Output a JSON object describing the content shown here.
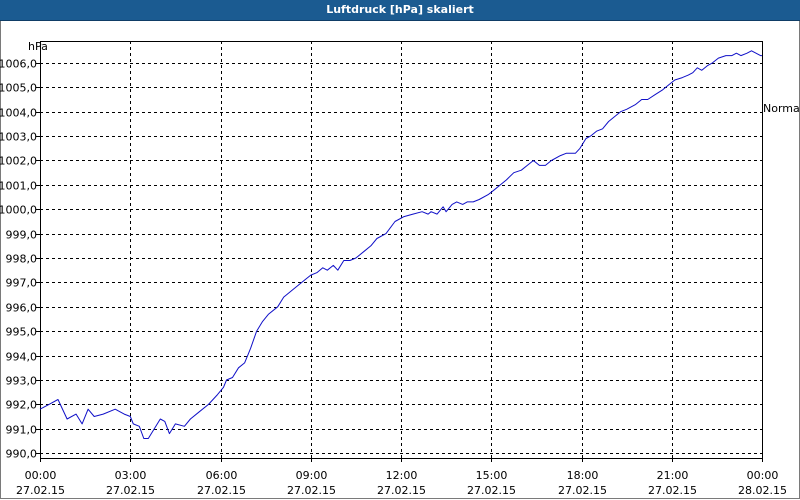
{
  "window": {
    "title": "Luftdruck [hPa] skaliert"
  },
  "chart_data": {
    "type": "line",
    "title": "Luftdruck [hPa] skaliert",
    "y_unit": "hPa",
    "legend": {
      "text": "Normal",
      "placement": "right"
    },
    "line_color": "#1010c8",
    "grid": true,
    "ylim": [
      989.8,
      1006.9
    ],
    "xlim_hours": [
      0,
      24
    ],
    "y_ticks": [
      "990,0",
      "991,0",
      "992,0",
      "993,0",
      "994,0",
      "995,0",
      "996,0",
      "997,0",
      "998,0",
      "999,0",
      "1000,0",
      "1001,0",
      "1002,0",
      "1003,0",
      "1004,0",
      "1005,0",
      "1006,0"
    ],
    "x_ticks": [
      {
        "time": "00:00",
        "date": "27.02.15"
      },
      {
        "time": "03:00",
        "date": "27.02.15"
      },
      {
        "time": "06:00",
        "date": "27.02.15"
      },
      {
        "time": "09:00",
        "date": "27.02.15"
      },
      {
        "time": "12:00",
        "date": "27.02.15"
      },
      {
        "time": "15:00",
        "date": "27.02.15"
      },
      {
        "time": "18:00",
        "date": "27.02.15"
      },
      {
        "time": "21:00",
        "date": "27.02.15"
      },
      {
        "time": "00:00",
        "date": "28.02.15"
      }
    ],
    "series": [
      {
        "values": [
          [
            0.0,
            991.8
          ],
          [
            0.3,
            992.0
          ],
          [
            0.6,
            992.2
          ],
          [
            0.9,
            991.4
          ],
          [
            1.2,
            991.6
          ],
          [
            1.4,
            991.2
          ],
          [
            1.6,
            991.8
          ],
          [
            1.8,
            991.5
          ],
          [
            2.1,
            991.6
          ],
          [
            2.5,
            991.8
          ],
          [
            2.8,
            991.6
          ],
          [
            3.0,
            991.5
          ],
          [
            3.1,
            991.2
          ],
          [
            3.3,
            991.1
          ],
          [
            3.45,
            990.6
          ],
          [
            3.6,
            990.6
          ],
          [
            3.8,
            991.0
          ],
          [
            4.0,
            991.4
          ],
          [
            4.15,
            991.3
          ],
          [
            4.3,
            990.8
          ],
          [
            4.5,
            991.2
          ],
          [
            4.8,
            991.1
          ],
          [
            5.0,
            991.4
          ],
          [
            5.3,
            991.7
          ],
          [
            5.6,
            992.0
          ],
          [
            5.9,
            992.4
          ],
          [
            6.1,
            992.7
          ],
          [
            6.2,
            993.0
          ],
          [
            6.4,
            993.1
          ],
          [
            6.6,
            993.5
          ],
          [
            6.8,
            993.7
          ],
          [
            7.0,
            994.3
          ],
          [
            7.2,
            995.0
          ],
          [
            7.4,
            995.4
          ],
          [
            7.6,
            995.7
          ],
          [
            7.9,
            996.0
          ],
          [
            8.1,
            996.4
          ],
          [
            8.4,
            996.7
          ],
          [
            8.6,
            996.9
          ],
          [
            8.8,
            997.1
          ],
          [
            9.0,
            997.3
          ],
          [
            9.2,
            997.4
          ],
          [
            9.4,
            997.6
          ],
          [
            9.55,
            997.5
          ],
          [
            9.75,
            997.7
          ],
          [
            9.9,
            997.5
          ],
          [
            10.1,
            997.9
          ],
          [
            10.3,
            997.9
          ],
          [
            10.5,
            998.0
          ],
          [
            10.8,
            998.3
          ],
          [
            11.0,
            998.5
          ],
          [
            11.2,
            998.8
          ],
          [
            11.5,
            999.0
          ],
          [
            11.8,
            999.5
          ],
          [
            12.1,
            999.7
          ],
          [
            12.4,
            999.8
          ],
          [
            12.7,
            999.9
          ],
          [
            12.9,
            999.8
          ],
          [
            13.0,
            999.9
          ],
          [
            13.2,
            999.8
          ],
          [
            13.4,
            1000.1
          ],
          [
            13.5,
            999.9
          ],
          [
            13.7,
            1000.2
          ],
          [
            13.85,
            1000.3
          ],
          [
            14.05,
            1000.2
          ],
          [
            14.2,
            1000.3
          ],
          [
            14.4,
            1000.3
          ],
          [
            14.6,
            1000.4
          ],
          [
            14.9,
            1000.6
          ],
          [
            15.1,
            1000.8
          ],
          [
            15.3,
            1001.0
          ],
          [
            15.5,
            1001.2
          ],
          [
            15.75,
            1001.5
          ],
          [
            16.0,
            1001.6
          ],
          [
            16.2,
            1001.8
          ],
          [
            16.4,
            1002.0
          ],
          [
            16.6,
            1001.8
          ],
          [
            16.8,
            1001.8
          ],
          [
            17.0,
            1002.0
          ],
          [
            17.3,
            1002.2
          ],
          [
            17.5,
            1002.3
          ],
          [
            17.8,
            1002.3
          ],
          [
            17.95,
            1002.5
          ],
          [
            18.15,
            1002.9
          ],
          [
            18.3,
            1003.0
          ],
          [
            18.5,
            1003.2
          ],
          [
            18.7,
            1003.3
          ],
          [
            18.9,
            1003.6
          ],
          [
            19.1,
            1003.8
          ],
          [
            19.3,
            1004.0
          ],
          [
            19.5,
            1004.1
          ],
          [
            19.8,
            1004.3
          ],
          [
            20.0,
            1004.5
          ],
          [
            20.2,
            1004.5
          ],
          [
            20.45,
            1004.7
          ],
          [
            20.7,
            1004.9
          ],
          [
            20.9,
            1005.1
          ],
          [
            21.1,
            1005.3
          ],
          [
            21.35,
            1005.4
          ],
          [
            21.55,
            1005.5
          ],
          [
            21.7,
            1005.6
          ],
          [
            21.85,
            1005.8
          ],
          [
            22.0,
            1005.7
          ],
          [
            22.2,
            1005.9
          ],
          [
            22.35,
            1006.0
          ],
          [
            22.55,
            1006.2
          ],
          [
            22.8,
            1006.3
          ],
          [
            23.0,
            1006.3
          ],
          [
            23.15,
            1006.4
          ],
          [
            23.3,
            1006.3
          ],
          [
            23.5,
            1006.4
          ],
          [
            23.65,
            1006.5
          ],
          [
            23.8,
            1006.4
          ],
          [
            23.95,
            1006.3
          ],
          [
            24.0,
            1006.3
          ]
        ]
      }
    ]
  }
}
